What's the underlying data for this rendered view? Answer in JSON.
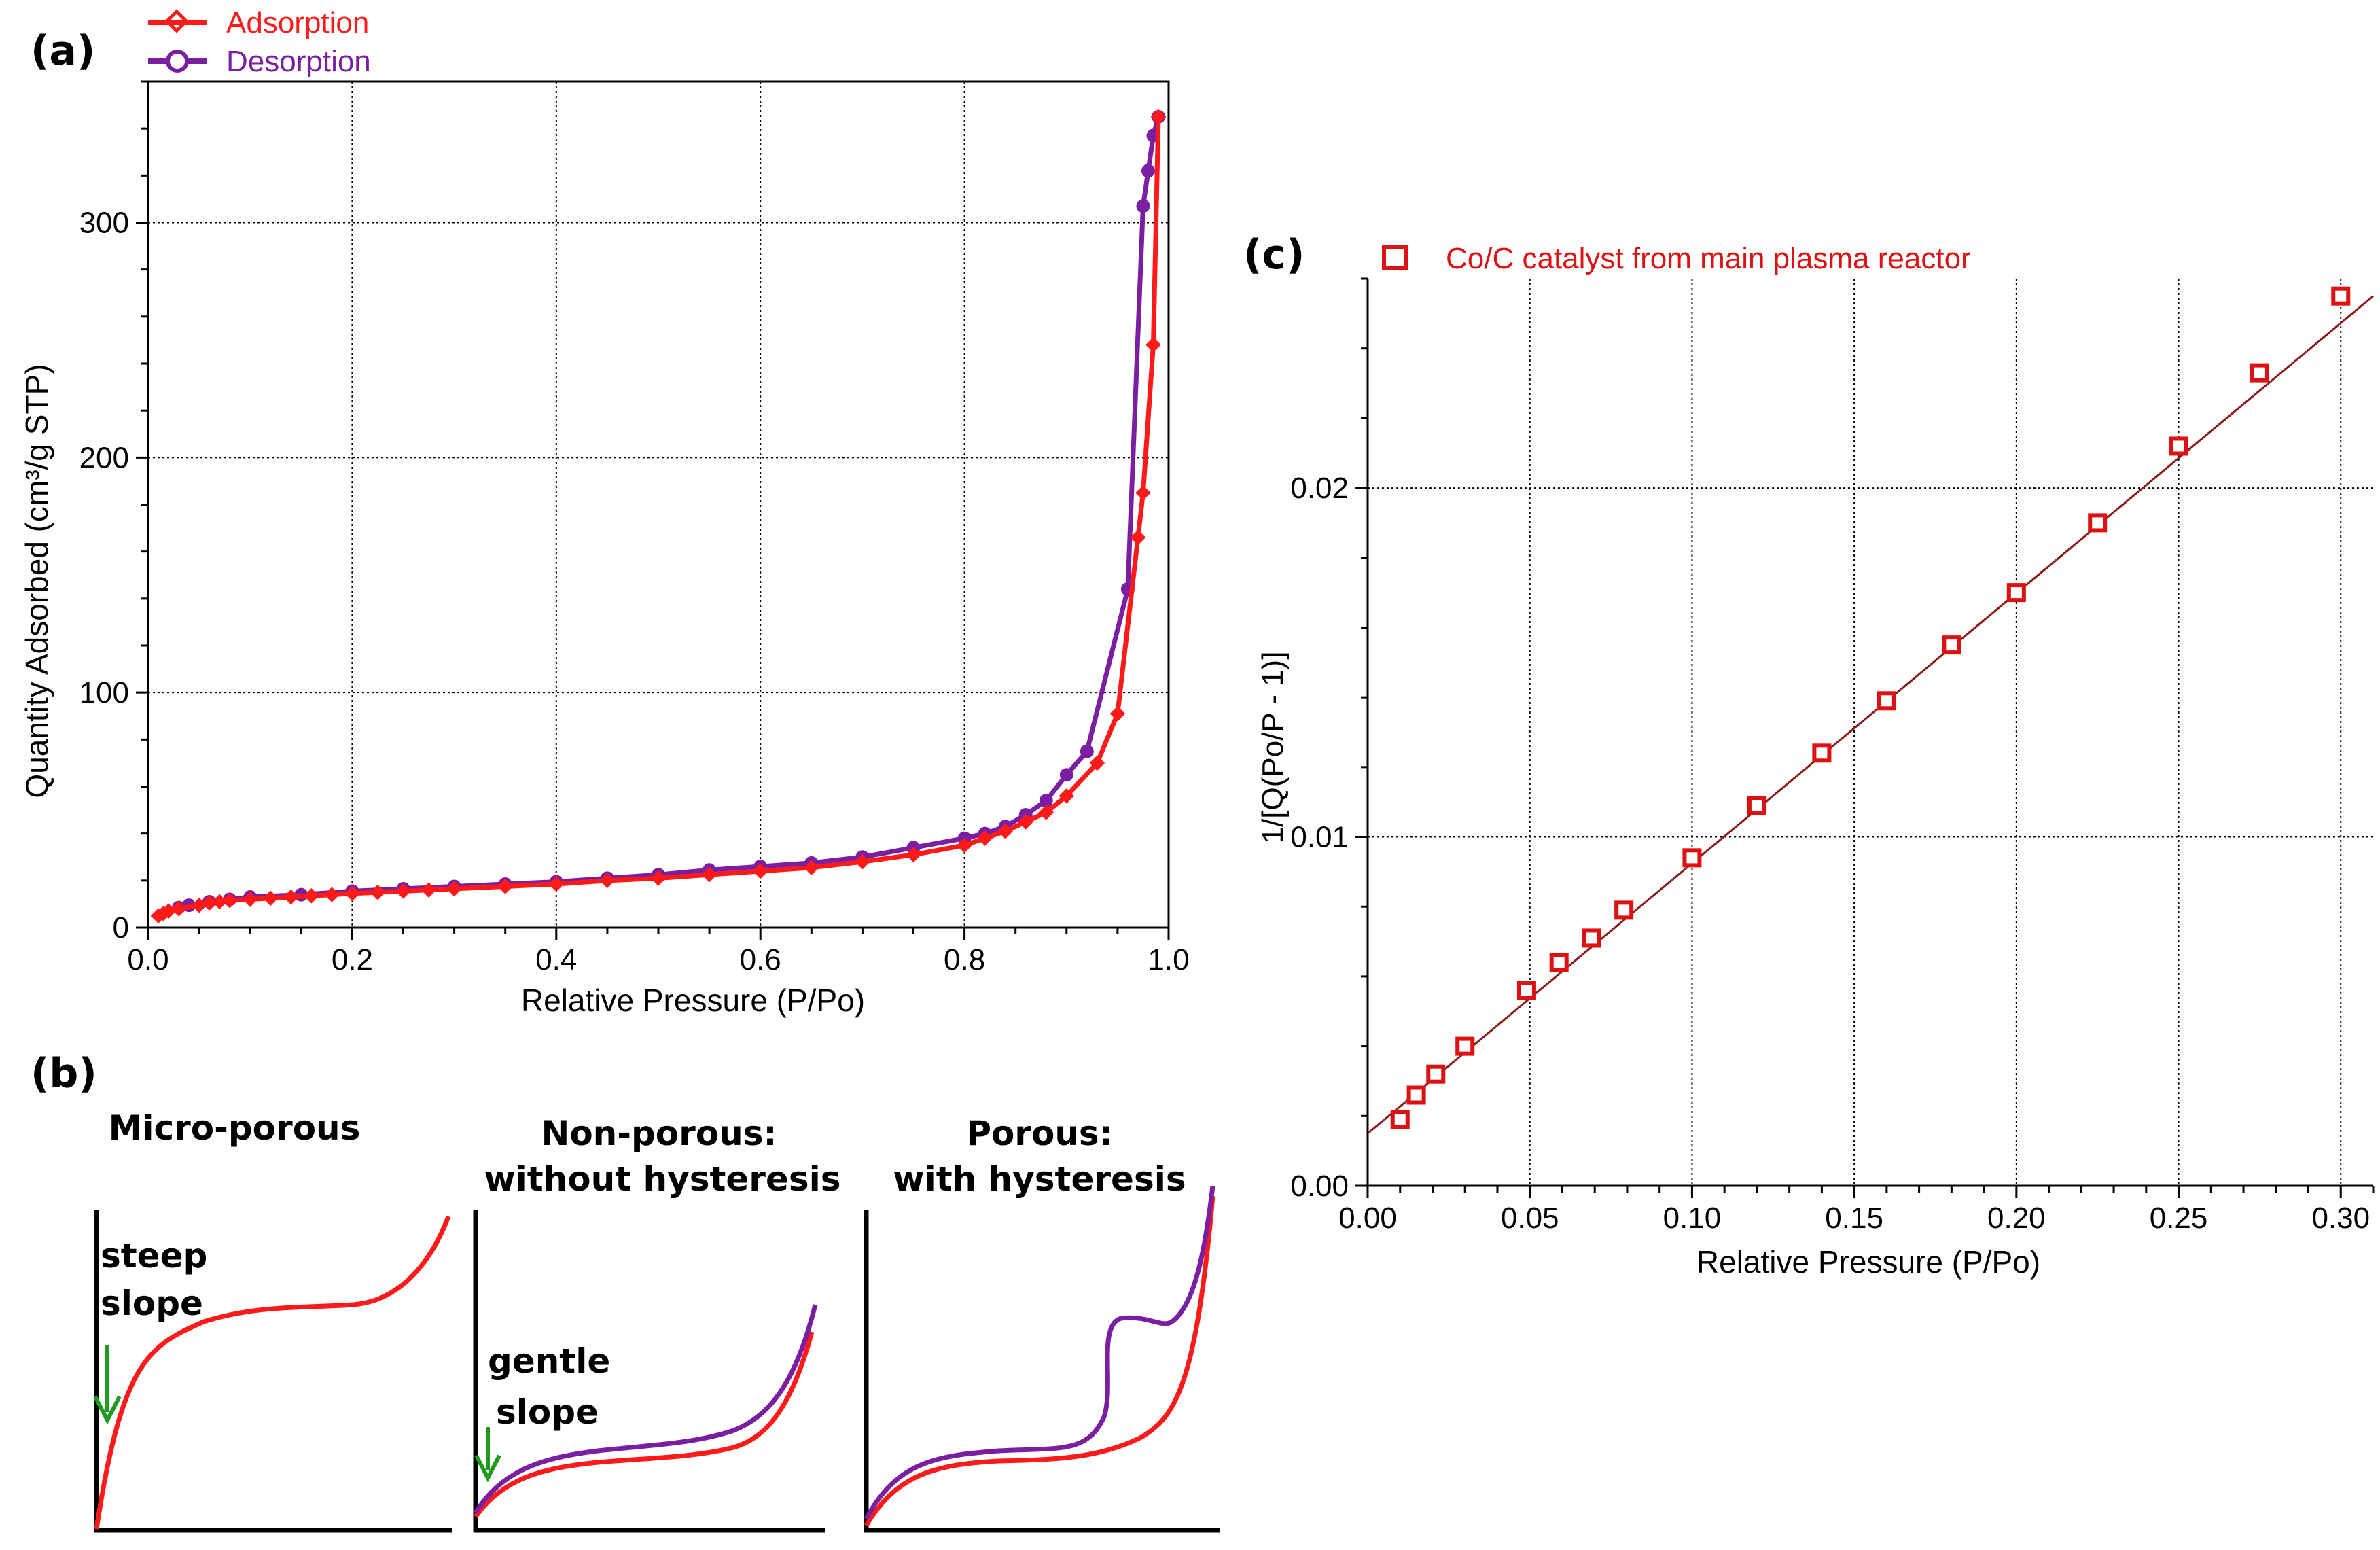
{
  "colors": {
    "adsorption": "#ff1a1a",
    "desorption": "#7b1fa2",
    "fit_line": "#8b1a1a",
    "arrow": "#1f9a1f",
    "grid": "#000000"
  },
  "chart_data": [
    {
      "panel": "(a)",
      "type": "line",
      "title": "",
      "xlabel": "Relative Pressure (P/Po)",
      "ylabel": "Quantity Adsorbed (cm³/g STP)",
      "xlim": [
        0,
        1.0
      ],
      "ylim": [
        0,
        360
      ],
      "xticks": [
        "0.0",
        "0.2",
        "0.4",
        "0.6",
        "0.8",
        "1.0"
      ],
      "yticks": [
        "0",
        "100",
        "200",
        "300"
      ],
      "grid": true,
      "legend_position": "top-left",
      "series": [
        {
          "name": "Adsorption",
          "color": "#ff1a1a",
          "marker": "diamond",
          "x": [
            0.01,
            0.015,
            0.02,
            0.03,
            0.05,
            0.06,
            0.07,
            0.08,
            0.1,
            0.12,
            0.14,
            0.16,
            0.18,
            0.2,
            0.225,
            0.25,
            0.275,
            0.3,
            0.35,
            0.4,
            0.45,
            0.5,
            0.55,
            0.6,
            0.65,
            0.7,
            0.75,
            0.8,
            0.82,
            0.84,
            0.86,
            0.88,
            0.9,
            0.93,
            0.95,
            0.97,
            0.975,
            0.985,
            0.99
          ],
          "y": [
            5,
            6,
            7,
            8,
            9.5,
            10.5,
            11,
            11.5,
            12,
            12.5,
            13,
            13.5,
            14,
            14.5,
            15,
            15.5,
            16,
            16.5,
            17.5,
            18.5,
            20,
            21,
            22.5,
            24,
            25.5,
            28,
            31,
            35,
            38,
            41,
            45,
            49,
            56,
            70,
            91,
            166,
            185,
            248,
            345
          ]
        },
        {
          "name": "Desorption",
          "color": "#7b1fa2",
          "marker": "circle",
          "x": [
            0.99,
            0.985,
            0.98,
            0.975,
            0.96,
            0.92,
            0.9,
            0.88,
            0.86,
            0.84,
            0.82,
            0.8,
            0.75,
            0.7,
            0.65,
            0.6,
            0.55,
            0.5,
            0.45,
            0.4,
            0.35,
            0.3,
            0.25,
            0.2,
            0.15,
            0.1,
            0.08,
            0.06,
            0.04,
            0.03
          ],
          "y": [
            345,
            337,
            322,
            307,
            144,
            75,
            65,
            54,
            48,
            43,
            40,
            38,
            34,
            30,
            27.5,
            26,
            24.5,
            22.5,
            21,
            19.5,
            18.5,
            17.5,
            16.5,
            15.5,
            14,
            13,
            12,
            11,
            9.5,
            8.5
          ]
        }
      ]
    },
    {
      "panel": "(b)",
      "type": "line",
      "subplots": [
        {
          "title": "Micro-porous",
          "annotation": [
            "steep",
            "slope"
          ],
          "curves": [
            "adsorption"
          ]
        },
        {
          "title": [
            "Non-porous:",
            "without hysteresis"
          ],
          "annotation": [
            "gentle",
            "slope"
          ],
          "curves": [
            "adsorption",
            "desorption"
          ]
        },
        {
          "title": [
            "Porous:",
            "with hysteresis"
          ],
          "annotation": [],
          "curves": [
            "adsorption",
            "desorption"
          ]
        }
      ]
    },
    {
      "panel": "(c)",
      "type": "scatter",
      "title": "",
      "xlabel": "Relative Pressure (P/Po)",
      "ylabel": "1/[Q(Po/P - 1)]",
      "xlim": [
        0,
        0.31
      ],
      "ylim": [
        0,
        0.026
      ],
      "xticks": [
        "0.00",
        "0.05",
        "0.10",
        "0.15",
        "0.20",
        "0.25",
        "0.30"
      ],
      "yticks": [
        "0.00",
        "0.01",
        "0.02"
      ],
      "grid": true,
      "legend_position": "top-left",
      "series": [
        {
          "name": "Co/C catalyst from main plasma reactor",
          "color": "#dd1111",
          "marker": "square",
          "x": [
            0.01,
            0.015,
            0.021,
            0.03,
            0.049,
            0.059,
            0.069,
            0.079,
            0.1,
            0.12,
            0.14,
            0.16,
            0.18,
            0.2,
            0.225,
            0.25,
            0.275,
            0.3
          ],
          "y": [
            0.0019,
            0.0026,
            0.0032,
            0.004,
            0.0056,
            0.0064,
            0.0071,
            0.0079,
            0.0094,
            0.0109,
            0.0124,
            0.0139,
            0.0155,
            0.017,
            0.019,
            0.0212,
            0.0233,
            0.0255
          ]
        }
      ],
      "fit_line": {
        "x": [
          0,
          0.31
        ],
        "y": [
          0.0015,
          0.0255
        ]
      }
    }
  ],
  "panel_labels": {
    "a": "(a)",
    "b": "(b)",
    "c": "(c)"
  }
}
